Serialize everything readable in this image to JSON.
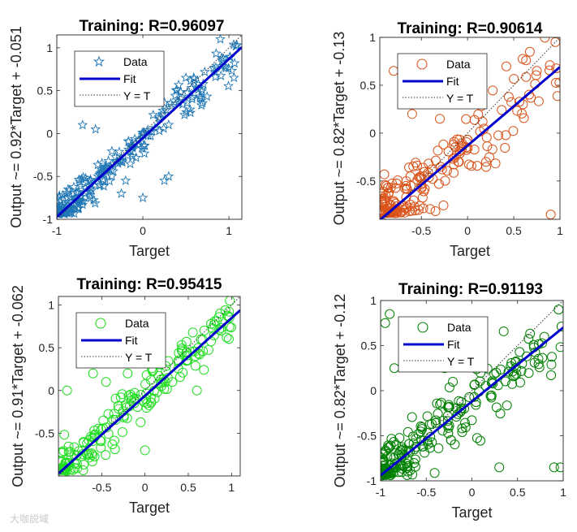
{
  "chart_data": [
    {
      "type": "scatter",
      "title": "Training: R=0.96097",
      "xlabel": "Target",
      "ylabel": "Output ~= 0.92*Target + -0.051",
      "xlim": [
        -1,
        1.15
      ],
      "ylim": [
        -1,
        1.15
      ],
      "xticks": [
        -1,
        0,
        1
      ],
      "xtick_labels": [
        "-1",
        "0",
        "1"
      ],
      "yticks": [
        -1,
        -0.5,
        0,
        0.5,
        1
      ],
      "ytick_labels": [
        "-1",
        "-0.5",
        "0",
        "0.5",
        "1"
      ],
      "marker": "star",
      "color": "#1f77b4",
      "fit": {
        "slope": 0.92,
        "intercept": -0.051,
        "color": "#0000cc"
      },
      "legend": [
        "Data",
        "Fit",
        "Y = T"
      ],
      "seed": 11,
      "n": 240,
      "spread": 0.11,
      "xmin": -1,
      "xmax": 1.1,
      "dist": "low",
      "outliers": [
        [
          -0.7,
          0.1
        ],
        [
          -0.55,
          0.05
        ],
        [
          -0.4,
          -0.32
        ],
        [
          -0.2,
          -0.55
        ],
        [
          0.25,
          -0.55
        ],
        [
          0.0,
          -0.75
        ],
        [
          -0.25,
          -0.7
        ],
        [
          0.3,
          -0.5
        ],
        [
          0.9,
          1.1
        ],
        [
          0.5,
          0.65
        ]
      ]
    },
    {
      "type": "scatter",
      "title": "Training: R=0.90614",
      "xlabel": "Target",
      "ylabel": "Output ~= 0.82*Target + -0.13",
      "xlim": [
        -0.95,
        1
      ],
      "ylim": [
        -0.9,
        1
      ],
      "xticks": [
        -0.5,
        0,
        0.5,
        1
      ],
      "xtick_labels": [
        "-0.5",
        "0",
        "0.5",
        "1"
      ],
      "yticks": [
        -0.5,
        0,
        0.5,
        1
      ],
      "ytick_labels": [
        "-0.5",
        "0",
        "0.5",
        "1"
      ],
      "marker": "circle",
      "color": "#d95319",
      "fit": {
        "slope": 0.82,
        "intercept": -0.13,
        "color": "#0000cc"
      },
      "legend": [
        "Data",
        "Fit",
        "Y = T"
      ],
      "seed": 23,
      "n": 210,
      "spread": 0.2,
      "xmin": -0.93,
      "xmax": 1,
      "dist": "low",
      "outliers": [
        [
          -0.8,
          0.65
        ],
        [
          -0.6,
          0.2
        ],
        [
          -0.5,
          0.5
        ],
        [
          -0.3,
          0.15
        ],
        [
          0.9,
          -0.85
        ],
        [
          0.6,
          0.3
        ],
        [
          0.75,
          0.65
        ],
        [
          0.2,
          -0.3
        ],
        [
          -0.1,
          -0.3
        ],
        [
          0.95,
          0.95
        ]
      ]
    },
    {
      "type": "scatter",
      "title": "Training: R=0.95415",
      "xlabel": "Target",
      "ylabel": "Output ~= 0.91*Target + -0.062",
      "xlim": [
        -1,
        1.1
      ],
      "ylim": [
        -1,
        1.1
      ],
      "xticks": [
        -0.5,
        0,
        0.5,
        1
      ],
      "xtick_labels": [
        "-0.5",
        "0",
        "0.5",
        "1"
      ],
      "yticks": [
        -0.5,
        0,
        0.5,
        1
      ],
      "ytick_labels": [
        "-0.5",
        "0",
        "0.5",
        "1"
      ],
      "marker": "circle",
      "color": "#22dd22",
      "fit": {
        "slope": 0.91,
        "intercept": -0.062,
        "color": "#0000cc"
      },
      "legend": [
        "Data",
        "Fit",
        "Y = T"
      ],
      "seed": 37,
      "n": 190,
      "spread": 0.13,
      "xmin": -0.98,
      "xmax": 1.02,
      "dist": "mid",
      "outliers": [
        [
          -0.9,
          0.0
        ],
        [
          -0.6,
          0.2
        ],
        [
          -0.45,
          0.1
        ],
        [
          0.0,
          -0.7
        ],
        [
          0.6,
          0.0
        ],
        [
          0.98,
          1.05
        ],
        [
          -0.2,
          0.2
        ]
      ]
    },
    {
      "type": "scatter",
      "title": "Training: R=0.91193",
      "xlabel": "Target",
      "ylabel": "Output ~= 0.82*Target + -0.12",
      "xlim": [
        -1,
        1
      ],
      "ylim": [
        -1,
        1
      ],
      "xticks": [
        -1,
        -0.5,
        0,
        0.5,
        1
      ],
      "xtick_labels": [
        "-1",
        "-0.5",
        "0",
        "0.5",
        "1"
      ],
      "yticks": [
        -1,
        -0.5,
        0,
        0.5,
        1
      ],
      "ytick_labels": [
        "-1",
        "-0.5",
        "0",
        "0.5",
        "1"
      ],
      "marker": "circle",
      "color": "#008000",
      "fit": {
        "slope": 0.82,
        "intercept": -0.12,
        "color": "#0000cc"
      },
      "legend": [
        "Data",
        "Fit",
        "Y = T"
      ],
      "seed": 53,
      "n": 230,
      "spread": 0.18,
      "xmin": -0.98,
      "xmax": 1,
      "dist": "low",
      "outliers": [
        [
          -0.95,
          0.75
        ],
        [
          -0.85,
          0.25
        ],
        [
          -0.9,
          0.85
        ],
        [
          0.97,
          -0.85
        ],
        [
          0.9,
          -0.85
        ],
        [
          0.3,
          -0.85
        ],
        [
          0.95,
          0.9
        ],
        [
          0.55,
          0.3
        ],
        [
          -0.3,
          0.25
        ]
      ]
    }
  ],
  "watermark": "大咖説域"
}
